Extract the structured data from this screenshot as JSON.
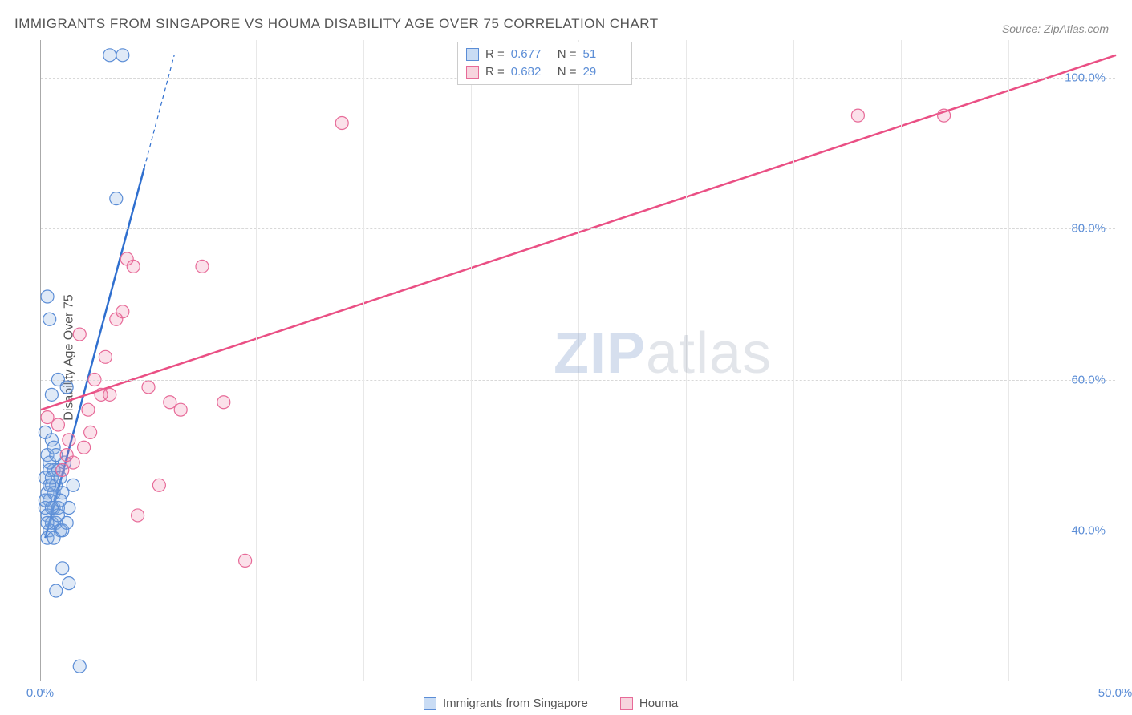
{
  "title": "IMMIGRANTS FROM SINGAPORE VS HOUMA DISABILITY AGE OVER 75 CORRELATION CHART",
  "source": "Source: ZipAtlas.com",
  "y_axis_label": "Disability Age Over 75",
  "watermark_a": "ZIP",
  "watermark_b": "atlas",
  "chart": {
    "type": "scatter",
    "background_color": "#ffffff",
    "grid_color": "#d8d8d8",
    "axis_color": "#aaaaaa",
    "tick_color": "#5b8dd6",
    "xlim": [
      0,
      50
    ],
    "ylim": [
      20,
      105
    ],
    "x_ticks": [
      0,
      50
    ],
    "x_tick_labels": [
      "0.0%",
      "50.0%"
    ],
    "x_minor_ticks": [
      10,
      15,
      20,
      25,
      30,
      35,
      40,
      45
    ],
    "y_ticks": [
      40,
      60,
      80,
      100
    ],
    "y_tick_labels": [
      "40.0%",
      "60.0%",
      "80.0%",
      "100.0%"
    ],
    "marker_radius": 8,
    "marker_stroke_width": 1.2,
    "line_width": 2.5,
    "series": [
      {
        "name": "Immigrants from Singapore",
        "swatch_fill": "#c9dcf4",
        "swatch_stroke": "#5b8dd6",
        "marker_fill": "rgba(130,170,225,0.25)",
        "marker_stroke": "#5b8dd6",
        "line_color": "#2f6fcf",
        "trend": {
          "x1": 0.2,
          "y1": 39,
          "x2": 4.8,
          "y2": 88,
          "dash_x2": 6.2,
          "dash_y2": 103
        },
        "R_label": "R =",
        "R": "0.677",
        "N_label": "N =",
        "N": "51",
        "points": [
          [
            0.3,
            71
          ],
          [
            0.4,
            68
          ],
          [
            0.2,
            53
          ],
          [
            0.5,
            52
          ],
          [
            0.3,
            50
          ],
          [
            0.4,
            48
          ],
          [
            0.6,
            48
          ],
          [
            0.2,
            47
          ],
          [
            0.5,
            46
          ],
          [
            0.7,
            46
          ],
          [
            0.3,
            45
          ],
          [
            0.4,
            44
          ],
          [
            0.2,
            43
          ],
          [
            0.6,
            43
          ],
          [
            0.8,
            43
          ],
          [
            0.3,
            42
          ],
          [
            0.5,
            41
          ],
          [
            0.7,
            41
          ],
          [
            0.4,
            40
          ],
          [
            0.9,
            40
          ],
          [
            0.3,
            39
          ],
          [
            0.6,
            39
          ],
          [
            1.0,
            40
          ],
          [
            1.2,
            41
          ],
          [
            1.5,
            46
          ],
          [
            0.8,
            48
          ],
          [
            1.0,
            45
          ],
          [
            1.3,
            43
          ],
          [
            0.5,
            58
          ],
          [
            0.8,
            60
          ],
          [
            1.2,
            59
          ],
          [
            3.2,
            103
          ],
          [
            3.8,
            103
          ],
          [
            3.5,
            84
          ],
          [
            1.0,
            35
          ],
          [
            1.3,
            33
          ],
          [
            0.7,
            32
          ],
          [
            1.8,
            22
          ],
          [
            0.9,
            44
          ],
          [
            1.1,
            49
          ],
          [
            0.6,
            51
          ],
          [
            0.4,
            49
          ],
          [
            0.3,
            41
          ],
          [
            0.8,
            42
          ],
          [
            0.5,
            47
          ],
          [
            0.7,
            50
          ],
          [
            0.9,
            47
          ],
          [
            0.6,
            45
          ],
          [
            0.4,
            46
          ],
          [
            0.2,
            44
          ],
          [
            0.5,
            43
          ]
        ]
      },
      {
        "name": "Houma",
        "swatch_fill": "#f7d4de",
        "swatch_stroke": "#e76a98",
        "marker_fill": "rgba(235,120,160,0.22)",
        "marker_stroke": "#e76a98",
        "line_color": "#ea4f84",
        "trend": {
          "x1": 0,
          "y1": 56,
          "x2": 50,
          "y2": 103
        },
        "R_label": "R =",
        "R": "0.682",
        "N_label": "N =",
        "N": "29",
        "points": [
          [
            0.3,
            55
          ],
          [
            0.8,
            54
          ],
          [
            1.3,
            52
          ],
          [
            1.5,
            49
          ],
          [
            2.0,
            51
          ],
          [
            2.3,
            53
          ],
          [
            3.0,
            63
          ],
          [
            3.5,
            68
          ],
          [
            4.0,
            76
          ],
          [
            4.3,
            75
          ],
          [
            3.8,
            69
          ],
          [
            2.8,
            58
          ],
          [
            5.0,
            59
          ],
          [
            6.0,
            57
          ],
          [
            7.5,
            75
          ],
          [
            8.5,
            57
          ],
          [
            5.5,
            46
          ],
          [
            4.5,
            42
          ],
          [
            9.5,
            36
          ],
          [
            14.0,
            94
          ],
          [
            38.0,
            95
          ],
          [
            42.0,
            95
          ],
          [
            1.8,
            66
          ],
          [
            2.5,
            60
          ],
          [
            3.2,
            58
          ],
          [
            1.0,
            48
          ],
          [
            1.2,
            50
          ],
          [
            2.2,
            56
          ],
          [
            6.5,
            56
          ]
        ]
      }
    ]
  },
  "legend": {
    "series1_label": "Immigrants from Singapore",
    "series2_label": "Houma"
  }
}
